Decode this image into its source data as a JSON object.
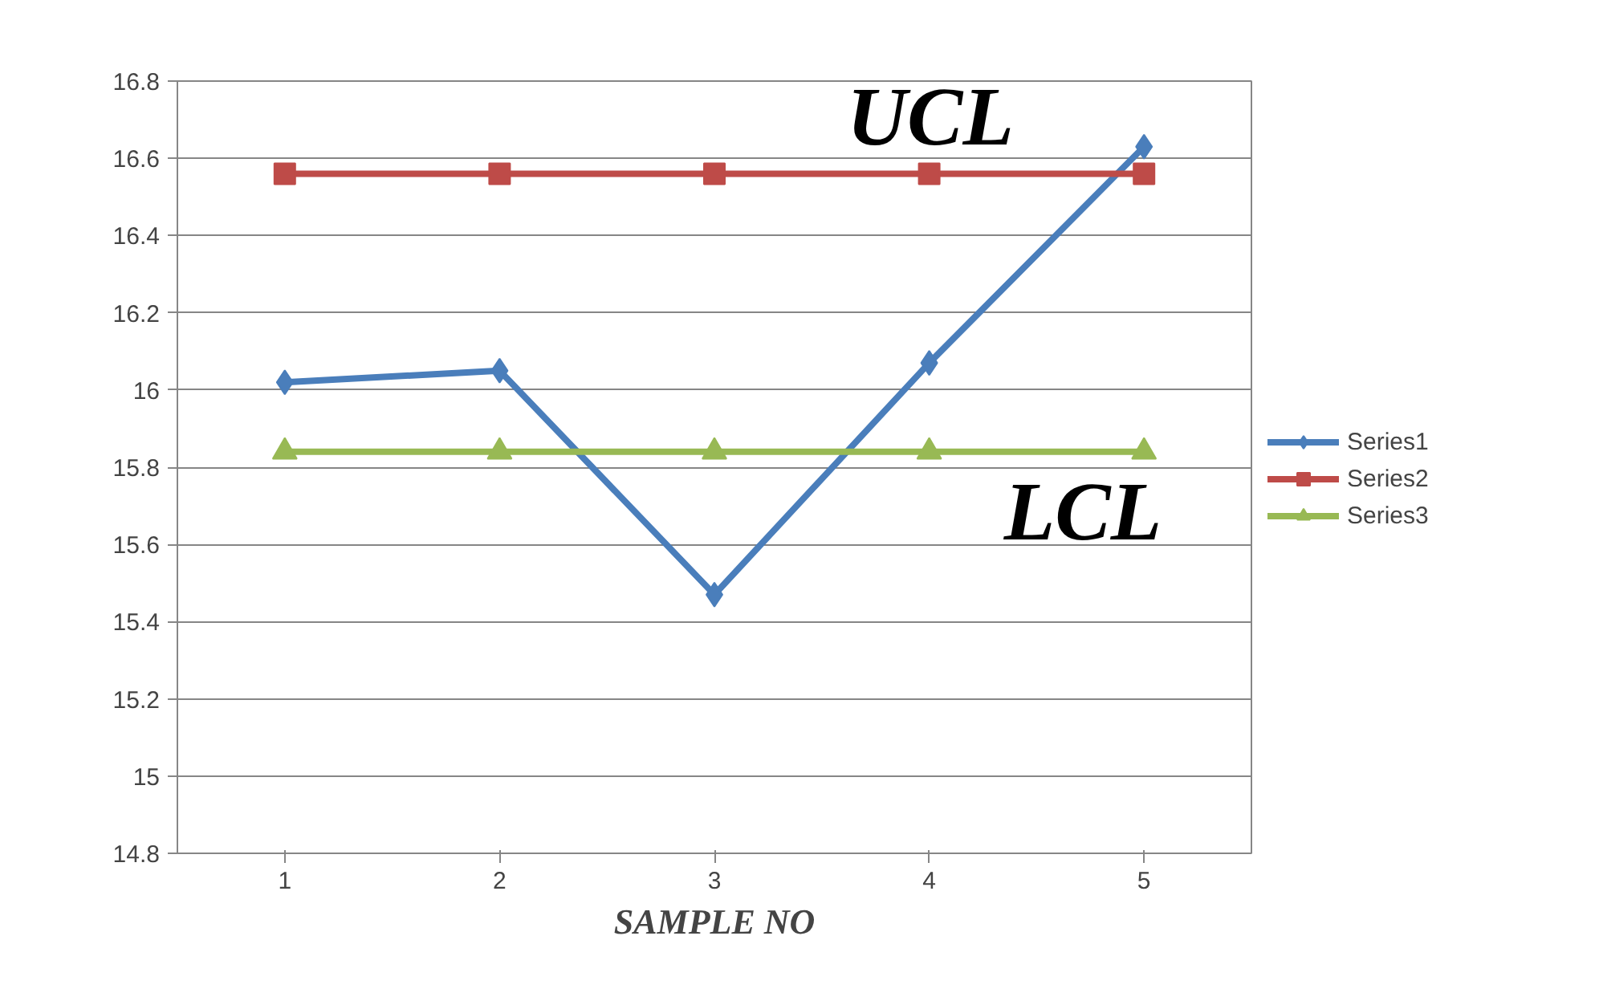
{
  "chart_data": {
    "type": "line",
    "xlabel": "SAMPLE NO",
    "categories": [
      "1",
      "2",
      "3",
      "4",
      "5"
    ],
    "ylim": [
      14.8,
      16.8
    ],
    "yticks": [
      14.8,
      15,
      15.2,
      15.4,
      15.6,
      15.8,
      16,
      16.2,
      16.4,
      16.6,
      16.8
    ],
    "grid": "y",
    "legend": "right",
    "line_style": "solid",
    "series": [
      {
        "name": "Series1",
        "color": "#4a7ebb",
        "marker": "diamond",
        "values": [
          16.02,
          16.05,
          15.47,
          16.07,
          16.63
        ]
      },
      {
        "name": "Series2",
        "color": "#be4b48",
        "marker": "square",
        "values": [
          16.56,
          16.56,
          16.56,
          16.56,
          16.56
        ]
      },
      {
        "name": "Series3",
        "color": "#98b954",
        "marker": "triangle",
        "values": [
          15.84,
          15.84,
          15.84,
          15.84,
          15.84
        ]
      }
    ],
    "annotations": [
      "UCL",
      "LCL"
    ]
  }
}
